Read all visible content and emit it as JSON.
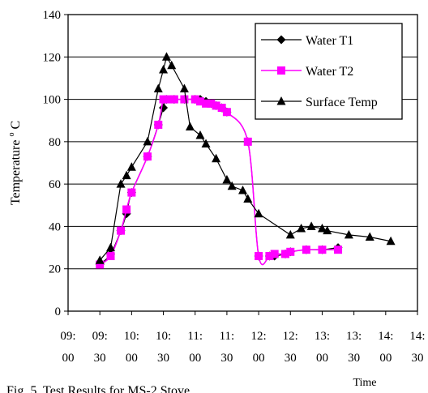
{
  "chart_data": {
    "type": "line",
    "title": "",
    "caption": "Fig. 5.  Test Results for MS-2 Stove",
    "xlabel": "Time",
    "ylabel": "Temperature",
    "ylabel_sup": "o",
    "ylabel_unit": "C",
    "ylim": [
      0,
      140
    ],
    "yticks": [
      0,
      20,
      40,
      60,
      80,
      100,
      120,
      140
    ],
    "xlim": [
      9.0,
      14.5
    ],
    "xticks": [
      {
        "top": "09:",
        "bottom": "00"
      },
      {
        "top": "09:",
        "bottom": "30"
      },
      {
        "top": "10:",
        "bottom": "00"
      },
      {
        "top": "10:",
        "bottom": "30"
      },
      {
        "top": "11:",
        "bottom": "00"
      },
      {
        "top": "11:",
        "bottom": "30"
      },
      {
        "top": "12:",
        "bottom": "00"
      },
      {
        "top": "12:",
        "bottom": "30"
      },
      {
        "top": "13:",
        "bottom": "00"
      },
      {
        "top": "13:",
        "bottom": "30"
      },
      {
        "top": "14:",
        "bottom": "00"
      },
      {
        "top": "14:",
        "bottom": "30"
      }
    ],
    "grid": "horizontal",
    "legend_position": "top-right",
    "series": [
      {
        "name": "Water T1",
        "color": "#000000",
        "marker": "diamond",
        "smooth": true,
        "points": [
          [
            9.5,
            22
          ],
          [
            9.67,
            27
          ],
          [
            9.83,
            38
          ],
          [
            9.92,
            46
          ],
          [
            10.0,
            56
          ],
          [
            10.25,
            73
          ],
          [
            10.42,
            88
          ],
          [
            10.5,
            96
          ],
          [
            10.55,
            100
          ],
          [
            10.67,
            100
          ],
          [
            10.83,
            100
          ],
          [
            11.0,
            100
          ],
          [
            11.08,
            100
          ],
          [
            11.17,
            99
          ],
          [
            11.25,
            98
          ],
          [
            11.33,
            97
          ],
          [
            11.42,
            96
          ],
          [
            11.5,
            94
          ],
          [
            11.83,
            80
          ],
          [
            12.0,
            26
          ],
          [
            12.17,
            26
          ],
          [
            12.25,
            26
          ],
          [
            12.42,
            27
          ],
          [
            12.5,
            28
          ],
          [
            12.75,
            29
          ],
          [
            13.0,
            29
          ],
          [
            13.25,
            30
          ]
        ]
      },
      {
        "name": "Water T2",
        "color": "#ff00ff",
        "marker": "square",
        "smooth": true,
        "points": [
          [
            9.5,
            22
          ],
          [
            9.67,
            26
          ],
          [
            9.83,
            38
          ],
          [
            9.92,
            48
          ],
          [
            10.0,
            56
          ],
          [
            10.25,
            73
          ],
          [
            10.42,
            88
          ],
          [
            10.5,
            100
          ],
          [
            10.58,
            100
          ],
          [
            10.67,
            100
          ],
          [
            10.83,
            100
          ],
          [
            11.0,
            100
          ],
          [
            11.08,
            99
          ],
          [
            11.17,
            98
          ],
          [
            11.25,
            98
          ],
          [
            11.33,
            97
          ],
          [
            11.42,
            96
          ],
          [
            11.5,
            94
          ],
          [
            11.83,
            80
          ],
          [
            12.0,
            26
          ],
          [
            12.17,
            26
          ],
          [
            12.25,
            27
          ],
          [
            12.42,
            27
          ],
          [
            12.5,
            28
          ],
          [
            12.75,
            29
          ],
          [
            13.0,
            29
          ],
          [
            13.25,
            29
          ]
        ]
      },
      {
        "name": "Surface Temp",
        "color": "#000000",
        "marker": "triangle",
        "smooth": false,
        "points": [
          [
            9.5,
            24
          ],
          [
            9.67,
            30
          ],
          [
            9.83,
            60
          ],
          [
            9.92,
            64
          ],
          [
            10.0,
            68
          ],
          [
            10.25,
            80
          ],
          [
            10.42,
            105
          ],
          [
            10.5,
            114
          ],
          [
            10.55,
            120
          ],
          [
            10.63,
            116
          ],
          [
            10.83,
            105
          ],
          [
            10.92,
            87
          ],
          [
            11.08,
            83
          ],
          [
            11.17,
            79
          ],
          [
            11.33,
            72
          ],
          [
            11.5,
            62
          ],
          [
            11.58,
            59
          ],
          [
            11.75,
            57
          ],
          [
            11.83,
            53
          ],
          [
            12.0,
            46
          ],
          [
            12.5,
            36
          ],
          [
            12.67,
            39
          ],
          [
            12.83,
            40
          ],
          [
            13.0,
            39
          ],
          [
            13.08,
            38
          ],
          [
            13.42,
            36
          ],
          [
            13.75,
            35
          ],
          [
            14.08,
            33
          ]
        ]
      }
    ]
  }
}
